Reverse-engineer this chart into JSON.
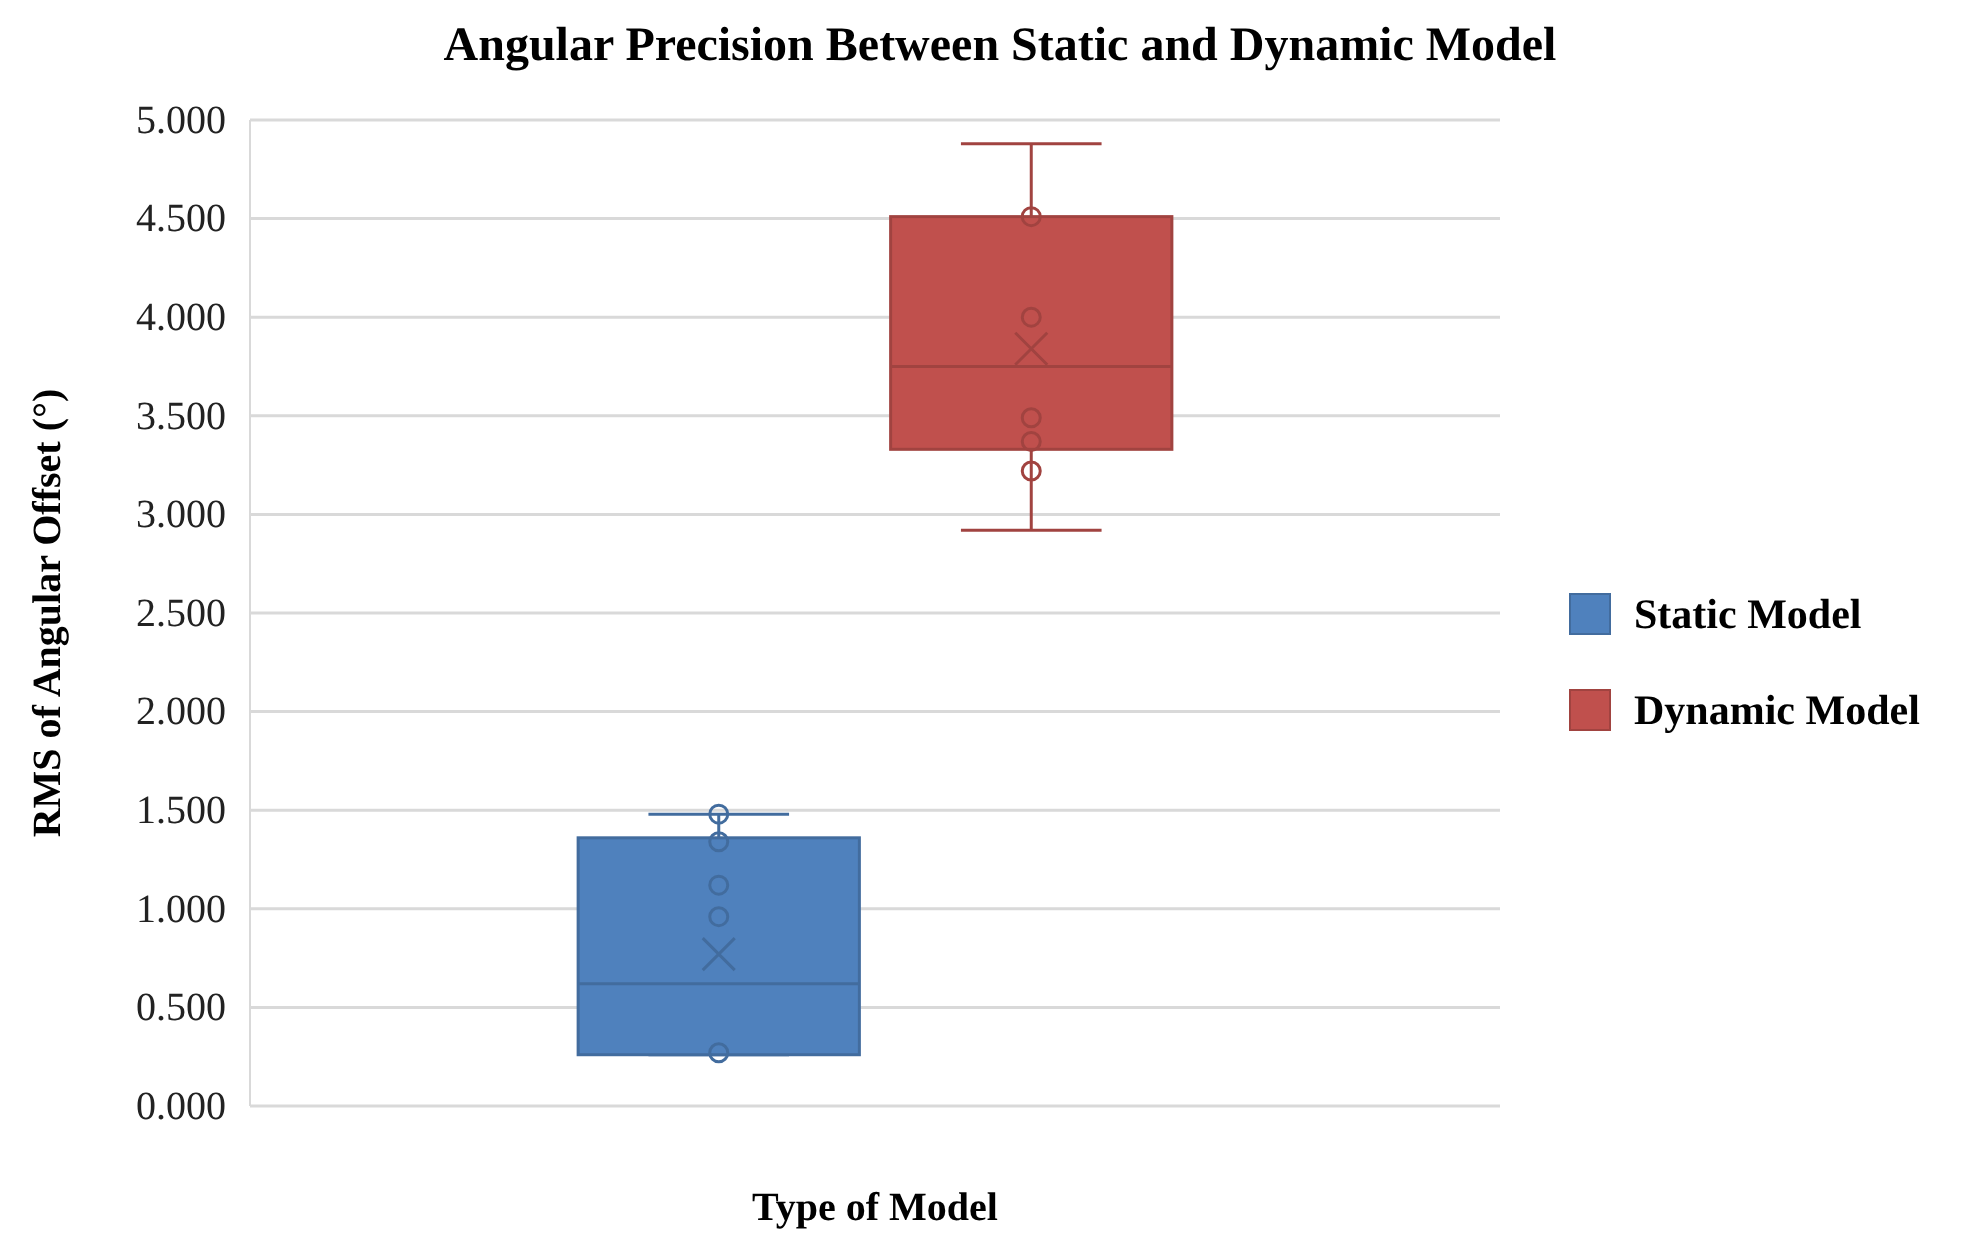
{
  "chart_data": {
    "type": "box",
    "title": "Angular Precision Between Static and Dynamic Model",
    "xlabel": "Type of Model",
    "ylabel": "RMS of Angular Offset (°)",
    "categories": [
      null
    ],
    "ylim": [
      0,
      5
    ],
    "yticks": [
      {
        "value": 0,
        "label": "0.000"
      },
      {
        "value": 0.5,
        "label": "0.500"
      },
      {
        "value": 1,
        "label": "1.000"
      },
      {
        "value": 1.5,
        "label": "1.500"
      },
      {
        "value": 2,
        "label": "2.000"
      },
      {
        "value": 2.5,
        "label": "2.500"
      },
      {
        "value": 3,
        "label": "3.000"
      },
      {
        "value": 3.5,
        "label": "3.500"
      },
      {
        "value": 4,
        "label": "4.000"
      },
      {
        "value": 4.5,
        "label": "4.500"
      },
      {
        "value": 5,
        "label": "5.000"
      }
    ],
    "grid": "y",
    "legend": "right",
    "series": [
      {
        "name": "Static Model",
        "color": "#4f81bd",
        "boxes": [
          {
            "low": 0.26,
            "q1": 0.26,
            "median": 0.62,
            "q3": 1.36,
            "high": 1.48,
            "mean": 0.77
          }
        ]
      },
      {
        "name": "Dynamic Model",
        "color": "#c0504d",
        "boxes": [
          {
            "low": 2.92,
            "q1": 3.33,
            "median": 3.75,
            "q3": 4.51,
            "high": 4.88,
            "mean": 3.84
          }
        ]
      },
      {
        "type": "scatter",
        "color": "#426c9e",
        "x": [
          null,
          null,
          null,
          null,
          null
        ],
        "values": [
          1.48,
          1.34,
          1.12,
          0.96,
          0.27
        ]
      },
      {
        "type": "scatter",
        "color": "#a14340",
        "x": [
          null,
          null,
          null,
          null,
          null
        ],
        "values": [
          4.51,
          4.0,
          3.49,
          3.37,
          3.22
        ]
      }
    ]
  }
}
